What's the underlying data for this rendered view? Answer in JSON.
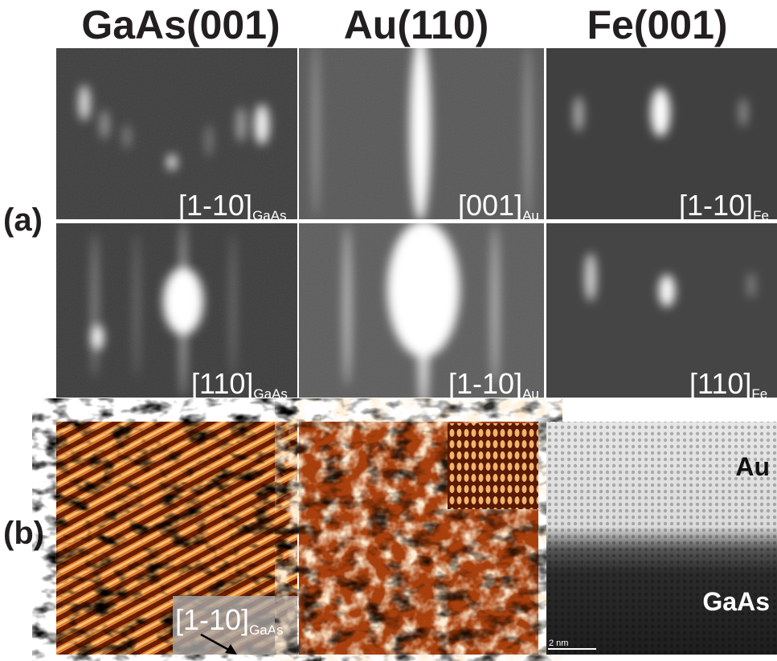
{
  "header": {
    "columns": [
      "GaAs(001)",
      "Au(110)",
      "Fe(001)"
    ]
  },
  "panel_a": {
    "label": "(a)",
    "rows": [
      [
        {
          "direction": "[1-10]",
          "subscript": "GaAs"
        },
        {
          "direction": "[001]",
          "subscript": "Au"
        },
        {
          "direction": "[1-10]",
          "subscript": "Fe"
        }
      ],
      [
        {
          "direction": "[110]",
          "subscript": "GaAs"
        },
        {
          "direction": "[1-10]",
          "subscript": "Au"
        },
        {
          "direction": "[110]",
          "subscript": "Fe"
        }
      ]
    ]
  },
  "panel_b": {
    "label": "(b)",
    "stm_gaas": {
      "direction": "[1-10]",
      "subscript": "GaAs"
    },
    "tem": {
      "top": "Au",
      "bottom": "GaAs",
      "scale_bar": "2 nm"
    }
  }
}
